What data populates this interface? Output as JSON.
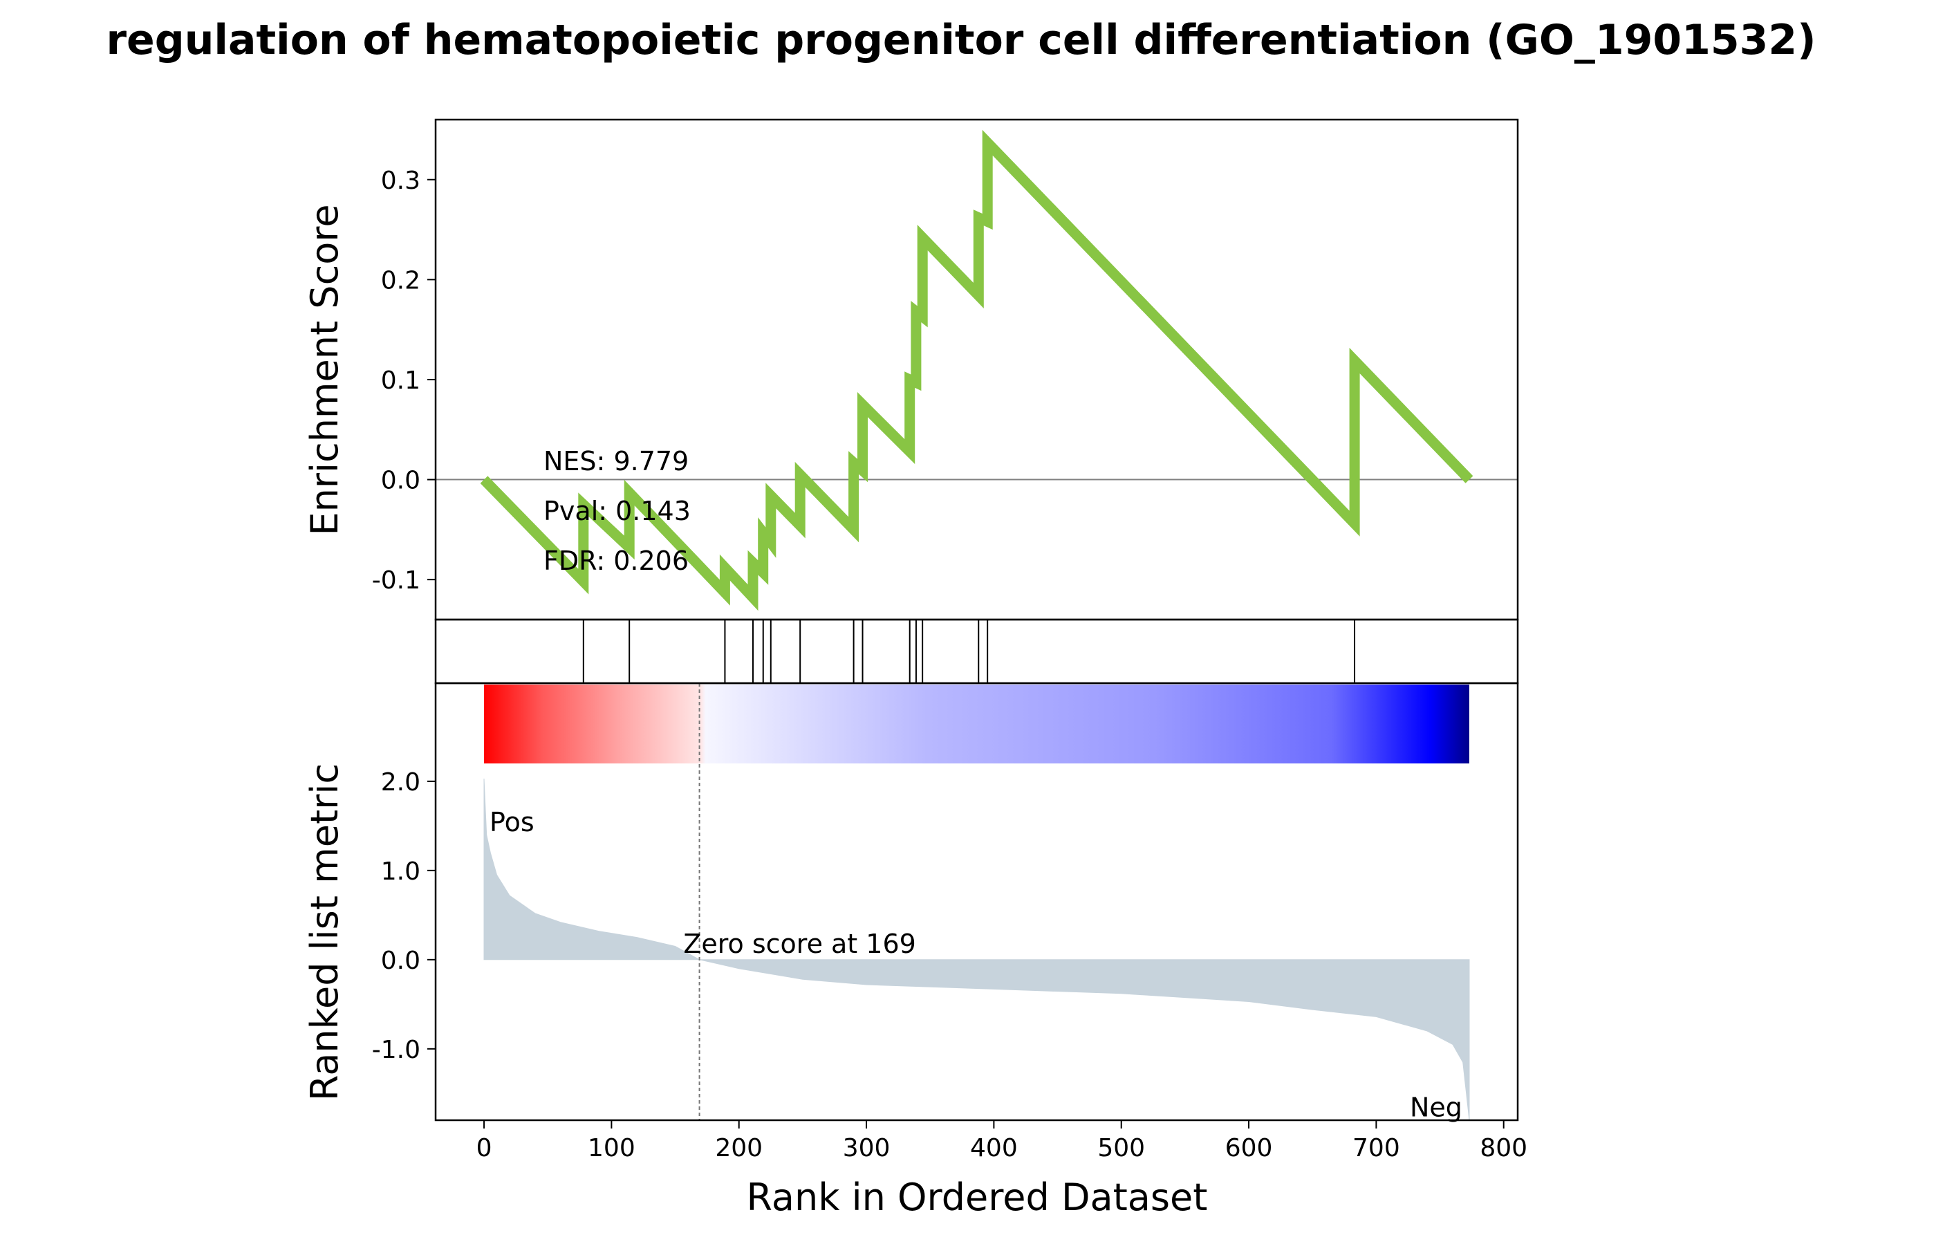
{
  "chart_data": {
    "type": "line",
    "title": "regulation of hematopoietic progenitor cell differentiation (GO_1901532)",
    "xlabel": "Rank in Ordered Dataset",
    "xlim": [
      -38,
      811
    ],
    "x_ticks": [
      0,
      100,
      200,
      300,
      400,
      500,
      600,
      700,
      800
    ],
    "x_tick_labels": [
      "0",
      "100",
      "200",
      "300",
      "400",
      "500",
      "600",
      "700",
      "800"
    ],
    "enrichment": {
      "ylabel": "Enrichment Score",
      "ylim": [
        -0.14,
        0.36
      ],
      "y_ticks": [
        -0.1,
        0.0,
        0.1,
        0.2,
        0.3
      ],
      "y_tick_labels": [
        "-0.1",
        "0.0",
        "0.1",
        "0.2",
        "0.3"
      ],
      "line_color": "#88c544",
      "zero_line_color": "#808080",
      "points": [
        [
          0,
          0.0
        ],
        [
          78,
          -0.102
        ],
        [
          78,
          -0.025
        ],
        [
          114,
          -0.068
        ],
        [
          114,
          -0.013
        ],
        [
          189,
          -0.113
        ],
        [
          189,
          -0.088
        ],
        [
          211,
          -0.118
        ],
        [
          211,
          -0.083
        ],
        [
          219,
          -0.093
        ],
        [
          219,
          -0.053
        ],
        [
          225,
          -0.063
        ],
        [
          225,
          -0.016
        ],
        [
          248,
          -0.046
        ],
        [
          248,
          0.005
        ],
        [
          290,
          -0.05
        ],
        [
          290,
          0.017
        ],
        [
          297,
          0.009
        ],
        [
          297,
          0.075
        ],
        [
          334,
          0.028
        ],
        [
          334,
          0.1
        ],
        [
          339,
          0.097
        ],
        [
          339,
          0.168
        ],
        [
          344,
          0.163
        ],
        [
          344,
          0.242
        ],
        [
          388,
          0.184
        ],
        [
          388,
          0.262
        ],
        [
          395,
          0.258
        ],
        [
          395,
          0.337
        ],
        [
          683,
          -0.044
        ],
        [
          683,
          0.119
        ],
        [
          773,
          0.0
        ]
      ],
      "stats": [
        "NES: 9.779",
        "Pval: 0.143",
        "FDR: 0.206"
      ]
    },
    "hits": {
      "positions": [
        78,
        114,
        189,
        211,
        219,
        225,
        248,
        290,
        297,
        334,
        339,
        344,
        388,
        395,
        683
      ]
    },
    "ranked_metric": {
      "ylabel": "Ranked list metric",
      "ylim": [
        -1.8,
        3.1
      ],
      "y_ticks": [
        -1.0,
        0.0,
        1.0,
        2.0
      ],
      "y_tick_labels": [
        "-1.0",
        "0.0",
        "1.0",
        "2.0"
      ],
      "fill_color": "#c7d3dc",
      "n": 774,
      "curve": [
        [
          0,
          2.03
        ],
        [
          2,
          1.4
        ],
        [
          5,
          1.2
        ],
        [
          10,
          0.95
        ],
        [
          20,
          0.72
        ],
        [
          40,
          0.52
        ],
        [
          60,
          0.42
        ],
        [
          90,
          0.32
        ],
        [
          120,
          0.25
        ],
        [
          150,
          0.15
        ],
        [
          169,
          0.0
        ],
        [
          200,
          -0.1
        ],
        [
          250,
          -0.22
        ],
        [
          300,
          -0.28
        ],
        [
          400,
          -0.33
        ],
        [
          500,
          -0.38
        ],
        [
          600,
          -0.47
        ],
        [
          650,
          -0.56
        ],
        [
          700,
          -0.64
        ],
        [
          740,
          -0.8
        ],
        [
          760,
          -0.95
        ],
        [
          768,
          -1.15
        ],
        [
          773,
          -1.8
        ]
      ],
      "zero_score_rank": 169,
      "zero_score_label": "Zero score at 169",
      "pos_label": "Pos",
      "neg_label": "Neg",
      "pos_color": "#ff0000",
      "neg_color": "#0000ff"
    }
  }
}
